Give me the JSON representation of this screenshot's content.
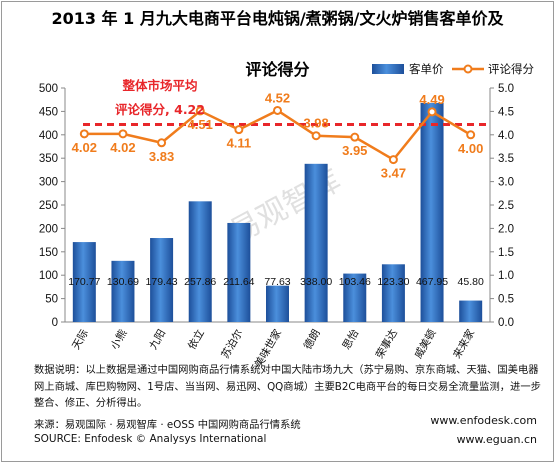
{
  "title_line1": "2013 年 1 月九大电商平台电炖锅/煮粥锅/文火炉销售客单价及",
  "title_line2": "评论得分",
  "colors": {
    "bar": "#2c6fc0",
    "line": "#f07c1c",
    "avg_line": "#e8262a",
    "score_label": "#f07c1c",
    "avg_label": "#e8262a"
  },
  "chart_data": {
    "type": "bar",
    "categories": [
      "天际",
      "小熊",
      "九阳",
      "依立",
      "苏泊尔",
      "美味世家",
      "德朗",
      "思怡",
      "荣事达",
      "威美顿",
      "来来家"
    ],
    "series": [
      {
        "name": "客单价",
        "type": "bar",
        "axis": "left",
        "values": [
          170.77,
          130.69,
          179.43,
          257.86,
          211.64,
          77.63,
          338.0,
          103.46,
          123.3,
          467.95,
          45.8
        ],
        "labels": [
          "170.77",
          "130.69",
          "179.43",
          "257.86",
          "211.64",
          "77.63",
          "338.00",
          "103.46",
          "123.30",
          "467.95",
          "45.80"
        ]
      },
      {
        "name": "评论得分",
        "type": "line",
        "axis": "right",
        "values": [
          4.02,
          4.02,
          3.83,
          4.51,
          4.11,
          4.52,
          3.98,
          3.95,
          3.47,
          4.49,
          4.0
        ],
        "labels": [
          "4.02",
          "4.02",
          "3.83",
          "4.51",
          "4.11",
          "4.52",
          "3.98",
          "3.95",
          "3.47",
          "4.49",
          "4.00"
        ]
      }
    ],
    "reference_line": {
      "value": 4.22,
      "axis": "right",
      "style": "dashed"
    },
    "annotation": {
      "line1": "整体市场平均",
      "line2": "评论得分, 4.22"
    },
    "y_left": {
      "min": 0,
      "max": 500,
      "ticks": [
        "0",
        "50",
        "100",
        "150",
        "200",
        "250",
        "300",
        "350",
        "400",
        "450",
        "500"
      ]
    },
    "y_right": {
      "min": 0,
      "max": 5,
      "ticks": [
        "0.0",
        "0.5",
        "1.0",
        "1.5",
        "2.0",
        "2.5",
        "3.0",
        "3.5",
        "4.0",
        "4.5",
        "5.0"
      ]
    },
    "legend_position": "top-right",
    "grid": false
  },
  "watermark": "易观智库",
  "footnote": "数据说明：以上数据是通过中国网购商品行情系统对中国大陆市场九大（苏宁易购、京东商城、天猫、国美电器网上商城、库巴购物网、1号店、当当网、易迅网、QQ商城）主要B2C电商平台的每日交易全流量监测，进一步整合、修正、分析得出。",
  "source_cn": "来源：易观国际 · 易观智库 · eOSS 中国网购商品行情系统",
  "source_en": "SOURCE: Enfodesk © Analysys International",
  "website1": "www.enfodesk.com",
  "website2": "www.eguan.cn"
}
